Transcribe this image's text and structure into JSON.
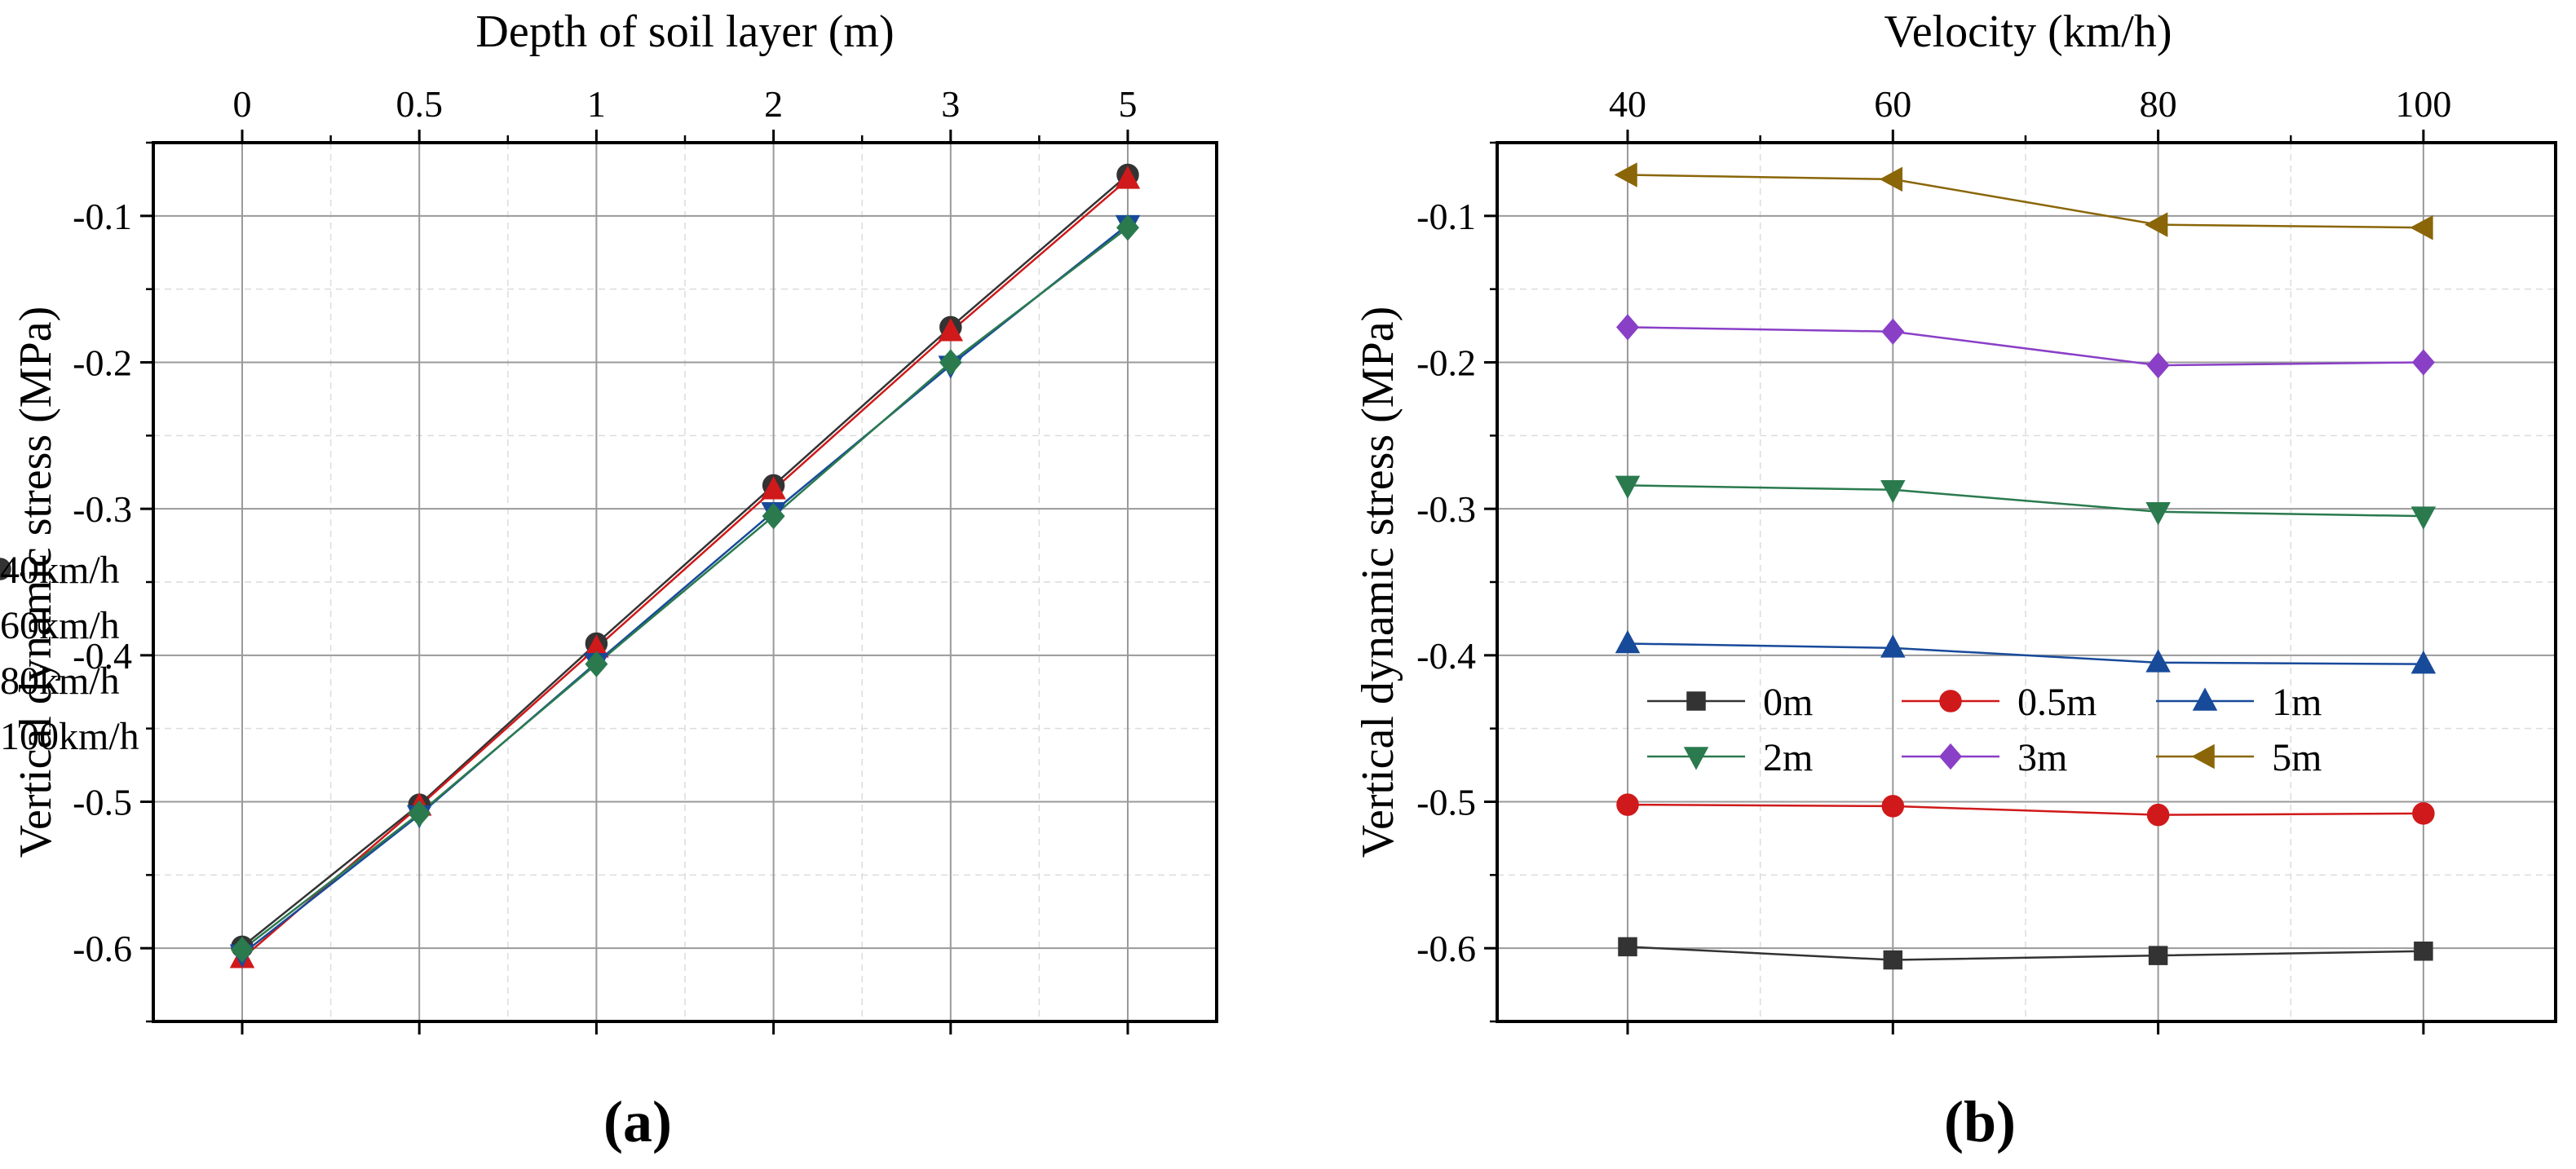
{
  "chart_data": [
    {
      "type": "line",
      "panel_label": "(a)",
      "title": "",
      "xlabel": "Depth of soil layer (m)",
      "ylabel": "Vertical dynamic stress (MPa)",
      "x_axis_position": "top",
      "categories": [
        "0",
        "0.5",
        "1",
        "2",
        "3",
        "5"
      ],
      "ylim": [
        -0.65,
        -0.05
      ],
      "yticks": [
        -0.6,
        -0.5,
        -0.4,
        -0.3,
        -0.2,
        -0.1
      ],
      "ytick_labels": [
        "-0.6",
        "-0.5",
        "-0.4",
        "-0.3",
        "-0.2",
        "-0.1"
      ],
      "grid": true,
      "legend_position": "center-right",
      "series": [
        {
          "name": "40km/h",
          "color": "#333333",
          "marker": "circle",
          "values": [
            -0.599,
            -0.502,
            -0.392,
            -0.284,
            -0.176,
            -0.072
          ]
        },
        {
          "name": "60km/h",
          "color": "#d0191a",
          "marker": "triangle-up",
          "values": [
            -0.607,
            -0.503,
            -0.395,
            -0.287,
            -0.179,
            -0.075
          ]
        },
        {
          "name": "80km/h",
          "color": "#184a9a",
          "marker": "triangle-down",
          "values": [
            -0.604,
            -0.509,
            -0.405,
            -0.302,
            -0.202,
            -0.106
          ]
        },
        {
          "name": "100km/h",
          "color": "#2a7a4e",
          "marker": "diamond",
          "values": [
            -0.601,
            -0.508,
            -0.406,
            -0.305,
            -0.2,
            -0.108
          ]
        }
      ]
    },
    {
      "type": "line",
      "panel_label": "(b)",
      "title": "",
      "xlabel": "Velocity (km/h)",
      "ylabel": "Vertical dynamic stress (MPa)",
      "x_axis_position": "top",
      "categories": [
        "40",
        "60",
        "80",
        "100"
      ],
      "ylim": [
        -0.65,
        -0.05
      ],
      "yticks": [
        -0.6,
        -0.5,
        -0.4,
        -0.3,
        -0.2,
        -0.1
      ],
      "ytick_labels": [
        "-0.6",
        "-0.5",
        "-0.4",
        "-0.3",
        "-0.2",
        "-0.1"
      ],
      "grid": true,
      "legend_position": "lower-left-center",
      "series": [
        {
          "name": "0m",
          "color": "#333333",
          "marker": "square",
          "values": [
            -0.599,
            -0.608,
            -0.605,
            -0.602
          ]
        },
        {
          "name": "0.5m",
          "color": "#d0191a",
          "marker": "circle",
          "values": [
            -0.502,
            -0.503,
            -0.509,
            -0.508
          ]
        },
        {
          "name": "1m",
          "color": "#184a9a",
          "marker": "triangle-up",
          "values": [
            -0.392,
            -0.395,
            -0.405,
            -0.406
          ]
        },
        {
          "name": "2m",
          "color": "#2a7a4e",
          "marker": "triangle-down",
          "values": [
            -0.284,
            -0.287,
            -0.302,
            -0.305
          ]
        },
        {
          "name": "3m",
          "color": "#8a3fc7",
          "marker": "diamond",
          "values": [
            -0.176,
            -0.179,
            -0.202,
            -0.2
          ]
        },
        {
          "name": "5m",
          "color": "#8a6608",
          "marker": "triangle-left",
          "values": [
            -0.072,
            -0.075,
            -0.106,
            -0.108
          ]
        }
      ]
    }
  ]
}
